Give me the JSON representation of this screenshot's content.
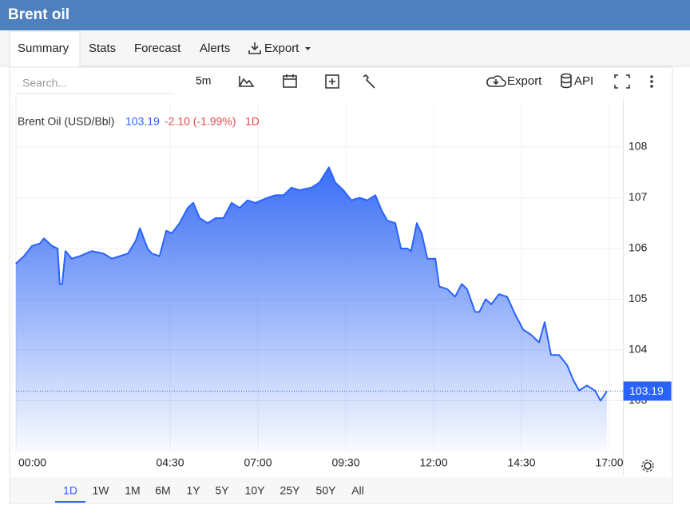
{
  "header": {
    "title": "Brent oil"
  },
  "tabs": [
    "Summary",
    "Stats",
    "Forecast",
    "Alerts",
    "Export"
  ],
  "toolbar": {
    "search_placeholder": "Search...",
    "interval": "5m",
    "export": "Export",
    "api": "API"
  },
  "chart_data": {
    "type": "area",
    "legend": {
      "name": "Brent Oil (USD/Bbl)",
      "change": "-2.10 (-1.99%)",
      "period": "1D"
    },
    "last_price": 103.19,
    "x": [
      0.11,
      0.34,
      0.57,
      0.8,
      0.91,
      1.14,
      1.3,
      1.36,
      1.43,
      1.52,
      1.7,
      1.93,
      2.27,
      2.61,
      2.84,
      3.07,
      3.3,
      3.52,
      3.64,
      3.86,
      3.98,
      4.2,
      4.39,
      4.55,
      4.77,
      5.0,
      5.16,
      5.34,
      5.57,
      5.8,
      6.02,
      6.25,
      6.48,
      6.7,
      6.93,
      7.27,
      7.5,
      7.73,
      7.95,
      8.18,
      8.52,
      8.75,
      9.02,
      9.2,
      9.43,
      9.66,
      9.89,
      10.11,
      10.34,
      10.52,
      10.68,
      10.91,
      11.07,
      11.25,
      11.36,
      11.52,
      11.66,
      11.82,
      12.05,
      12.16,
      12.39,
      12.61,
      12.8,
      12.95,
      13.18,
      13.3,
      13.48,
      13.64,
      13.86,
      14.09,
      14.32,
      14.55,
      14.77,
      15.0,
      15.16,
      15.34,
      15.57,
      15.8,
      15.98,
      16.14,
      16.36,
      16.59,
      16.75,
      16.93
    ],
    "series": [
      {
        "name": "Brent Oil (USD/Bbl)",
        "color": "#2962ff",
        "values": [
          105.7,
          105.85,
          106.05,
          106.1,
          106.2,
          106.05,
          106.0,
          105.3,
          105.3,
          105.95,
          105.8,
          105.85,
          105.95,
          105.9,
          105.8,
          105.85,
          105.9,
          106.15,
          106.4,
          106.0,
          105.9,
          105.85,
          106.35,
          106.3,
          106.5,
          106.8,
          106.9,
          106.6,
          106.5,
          106.6,
          106.6,
          106.9,
          106.8,
          106.95,
          106.9,
          107.0,
          107.05,
          107.05,
          107.2,
          107.15,
          107.2,
          107.3,
          107.6,
          107.3,
          107.15,
          106.95,
          107.0,
          106.95,
          107.05,
          106.75,
          106.55,
          106.5,
          106.0,
          106.0,
          105.95,
          106.5,
          106.3,
          105.8,
          105.8,
          105.25,
          105.2,
          105.05,
          105.3,
          105.2,
          104.75,
          104.75,
          105.0,
          104.9,
          105.1,
          105.05,
          104.7,
          104.4,
          104.3,
          104.15,
          104.55,
          103.9,
          103.9,
          103.7,
          103.4,
          103.2,
          103.3,
          103.2,
          103.0,
          103.19
        ]
      }
    ],
    "xlim": [
      0,
      17.4
    ],
    "ylim": [
      102,
      108.85
    ],
    "xticks": [
      {
        "value": 0,
        "label": "00:00"
      },
      {
        "value": 4.5,
        "label": "04:30"
      },
      {
        "value": 7,
        "label": "07:00"
      },
      {
        "value": 9.5,
        "label": "09:30"
      },
      {
        "value": 12,
        "label": "12:00"
      },
      {
        "value": 14.5,
        "label": "14:30"
      },
      {
        "value": 17,
        "label": "17:00"
      }
    ],
    "yticks": [
      103,
      104,
      105,
      106,
      107,
      108
    ],
    "grid": true
  },
  "ranges": [
    "1D",
    "1W",
    "1M",
    "6M",
    "1Y",
    "5Y",
    "10Y",
    "25Y",
    "50Y",
    "All"
  ],
  "selected_range": 0
}
